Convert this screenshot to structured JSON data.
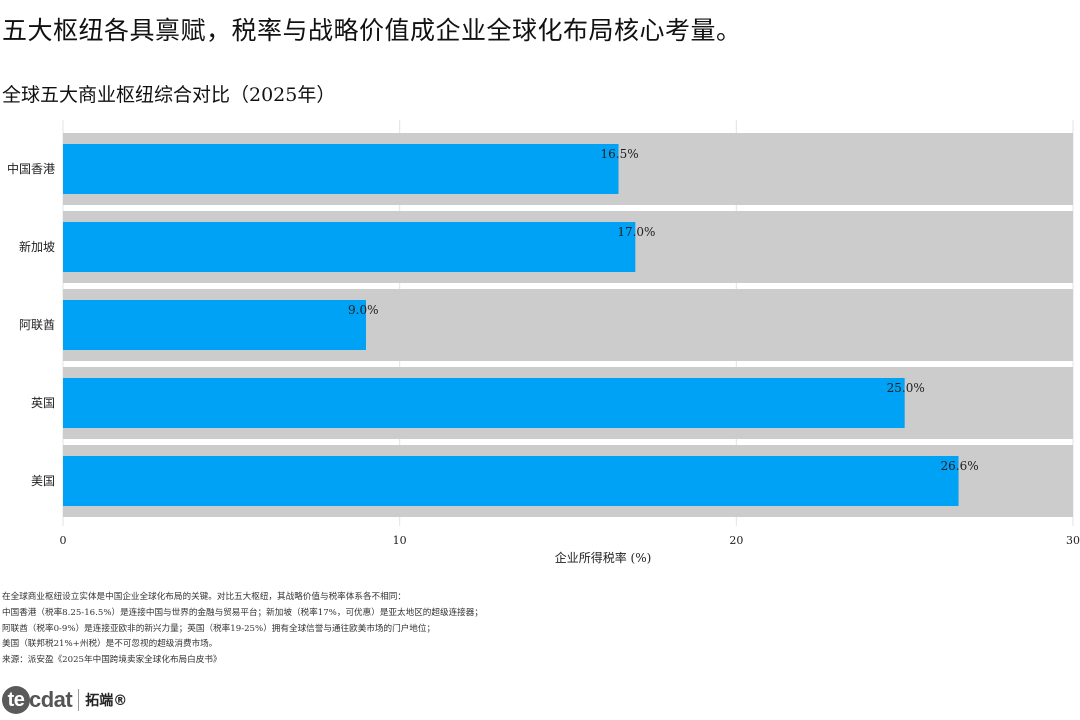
{
  "header": {
    "headline": "五大枢纽各具禀赋，税率与战略价值成企业全球化布局核心考量。"
  },
  "chart_data": {
    "type": "bar",
    "orientation": "horizontal",
    "title": "全球五大商业枢纽综合对比（2025年）",
    "categories": [
      "中国香港",
      "新加坡",
      "阿联酋",
      "英国",
      "美国"
    ],
    "values": [
      16.5,
      17.0,
      9.0,
      25.0,
      26.6
    ],
    "value_labels": [
      "16.5%",
      "17.0%",
      "9.0%",
      "25.0%",
      "26.6%"
    ],
    "xlabel": "企业所得税率 (%)",
    "ylabel": "",
    "xlim": [
      0,
      30
    ],
    "xticks": [
      0,
      10,
      20,
      30
    ],
    "grid": true,
    "colors": {
      "bar": "#00A2F5",
      "track": "#CCCCCC",
      "grid": "#E3E3E3"
    }
  },
  "notes": [
    "在全球商业枢纽设立实体是中国企业全球化布局的关键。对比五大枢纽，其战略价值与税率体系各不相同：",
    "中国香港（税率8.25-16.5%）是连接中国与世界的金融与贸易平台；新加坡（税率17%，可优惠）是亚太地区的超级连接器；",
    "阿联酋（税率0-9%）是连接亚欧非的新兴力量；英国（税率19-25%）拥有全球信誉与通往欧美市场的门户地位；",
    "美国（联邦税21%+州税）是不可忽视的超级消费市场。",
    "来源：派安盈《2025年中国跨境卖家全球化布局白皮书》"
  ],
  "logo": {
    "mark_ring": "te",
    "mark_rest": "cdat",
    "name_cn": "拓端®"
  }
}
